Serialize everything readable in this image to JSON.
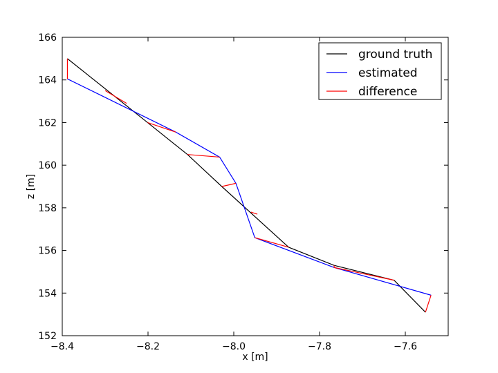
{
  "chart_data": {
    "type": "line",
    "xlabel": "x [m]",
    "ylabel": "z [m]",
    "xlim": [
      -8.4,
      -7.5
    ],
    "ylim": [
      152,
      166
    ],
    "xticks": [
      -8.4,
      -8.2,
      -8.0,
      -7.8,
      -7.6
    ],
    "xtick_labels": [
      "−8.4",
      "−8.2",
      "−8.0",
      "−7.8",
      "−7.6"
    ],
    "yticks": [
      152,
      154,
      156,
      158,
      160,
      162,
      164,
      166
    ],
    "ytick_labels": [
      "152",
      "154",
      "156",
      "158",
      "160",
      "162",
      "164",
      "166"
    ],
    "grid": false,
    "legend_position": "top-right",
    "series": [
      {
        "name": "ground truth",
        "color": "#000000",
        "x": [
          -8.388,
          -8.201,
          -8.108,
          -8.028,
          -7.872,
          -7.766,
          -7.626,
          -7.553
        ],
        "y": [
          165.0,
          162.0,
          160.5,
          159.0,
          156.15,
          155.3,
          154.6,
          153.1
        ]
      },
      {
        "name": "estimated",
        "color": "#0000ff",
        "x": [
          -8.388,
          -8.135,
          -8.033,
          -7.995,
          -7.951,
          -7.766,
          -7.54
        ],
        "y": [
          164.05,
          161.55,
          160.38,
          159.15,
          156.6,
          155.2,
          153.9
        ]
      },
      {
        "name": "difference",
        "color": "#ff0000",
        "segments": [
          [
            [
              -8.388,
              165.0
            ],
            [
              -8.388,
              164.05
            ]
          ],
          [
            [
              -8.201,
              162.0
            ],
            [
              -8.135,
              161.55
            ]
          ],
          [
            [
              -8.108,
              160.5
            ],
            [
              -8.033,
              160.38
            ]
          ],
          [
            [
              -8.028,
              159.0
            ],
            [
              -7.995,
              159.15
            ]
          ],
          [
            [
              -7.872,
              156.15
            ],
            [
              -7.951,
              156.6
            ]
          ],
          [
            [
              -7.766,
              155.3
            ],
            [
              -7.766,
              155.2
            ]
          ],
          [
            [
              -7.626,
              154.6
            ],
            [
              -7.766,
              155.2
            ]
          ],
          [
            [
              -7.553,
              153.1
            ],
            [
              -7.54,
              153.9
            ]
          ],
          [
            [
              -8.3,
              163.5
            ],
            [
              -8.25,
              162.9
            ]
          ],
          [
            [
              -7.96,
              157.8
            ],
            [
              -7.945,
              157.7
            ]
          ]
        ]
      }
    ]
  }
}
